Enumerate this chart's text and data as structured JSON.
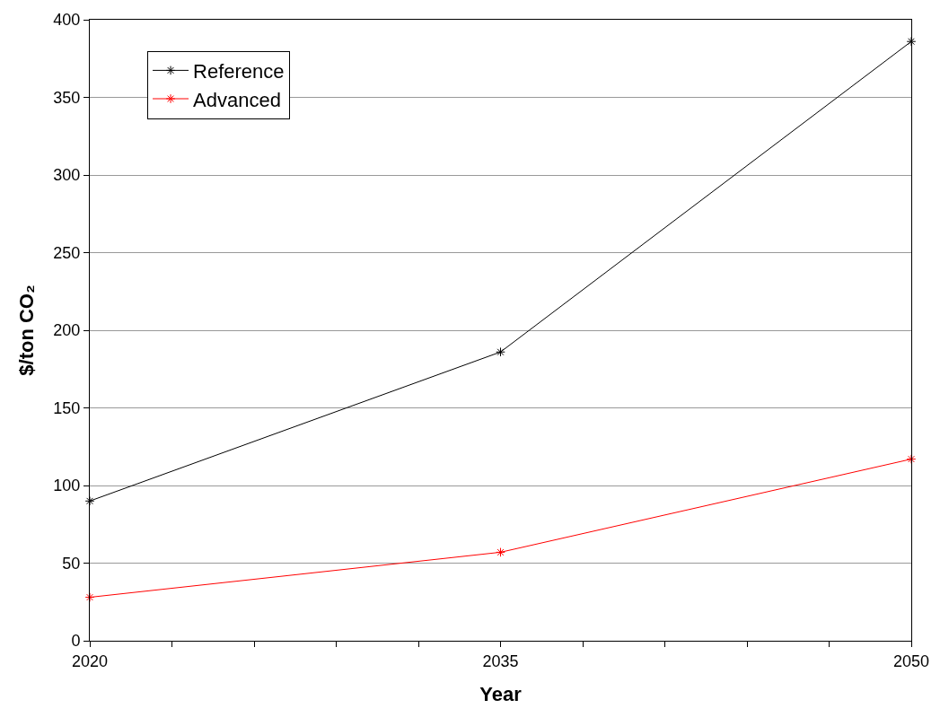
{
  "chart_data": {
    "type": "line",
    "xlabel": "Year",
    "ylabel": "$/ton CO₂",
    "x": [
      2020,
      2035,
      2050
    ],
    "series": [
      {
        "name": "Reference",
        "color": "#000000",
        "values": [
          90,
          186,
          386
        ]
      },
      {
        "name": "Advanced",
        "color": "#ff0000",
        "values": [
          28,
          57,
          117
        ]
      }
    ],
    "xlim": [
      2020,
      2050
    ],
    "xticks": [
      2020,
      {
        "value": 2023,
        "label": null
      },
      {
        "value": 2026,
        "label": null
      },
      {
        "value": 2029,
        "label": null
      },
      {
        "value": 2032,
        "label": null
      },
      2035,
      {
        "value": 2038,
        "label": null
      },
      {
        "value": 2041,
        "label": null
      },
      {
        "value": 2044,
        "label": null
      },
      {
        "value": 2047,
        "label": null
      },
      2050
    ],
    "ylim": [
      0,
      400
    ],
    "yticks": [
      0,
      50,
      100,
      150,
      200,
      250,
      300,
      350,
      400
    ],
    "grid": "y",
    "legend": "top left",
    "marker": "cross",
    "line_style": "solid"
  }
}
